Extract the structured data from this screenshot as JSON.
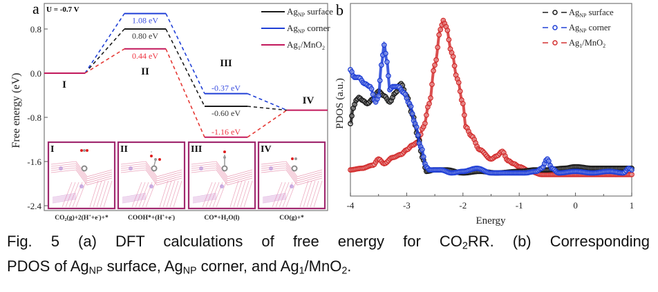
{
  "caption": {
    "line1_a": "Fig. 5 (a) DFT calculations of free energy for CO",
    "line1_sub": "2",
    "line1_b": "RR. (b) Corresponding",
    "line2_a": "PDOS of Ag",
    "line2_sub1": "NP",
    "line2_b": " surface, Ag",
    "line2_sub2": "NP",
    "line2_c": " corner, and Ag",
    "line2_sub3": "1",
    "line2_d": "/MnO",
    "line2_sub4": "2",
    "line2_e": "."
  },
  "chart_data": [
    {
      "panel": "a",
      "type": "line",
      "title": "",
      "annotation": "U = -0.7 V",
      "xlabel": "",
      "ylabel": "Free energy (eV)",
      "ylim": [
        -2.45,
        1.25
      ],
      "yticks": [
        0.8,
        0.0,
        -0.8,
        -1.6,
        -2.4
      ],
      "ytick_labels": [
        "0.8",
        "0.0",
        "-0.8",
        "-1.6",
        "-2.4"
      ],
      "grid": false,
      "legend": "top-right",
      "states": [
        "I",
        "II",
        "III",
        "IV"
      ],
      "state_xlabels": [
        "CO2(g)+2(H+ +e-)+*",
        "COOH*+(H+ +e-)",
        "CO*+H2O(l)",
        "CO(g)+*"
      ],
      "series": [
        {
          "name": "AgNP surface",
          "color": "#1a1a1a",
          "values": [
            0.0,
            0.8,
            -0.6,
            -0.67
          ],
          "labels": [
            "",
            "0.80 eV",
            "-0.60 eV",
            ""
          ]
        },
        {
          "name": "AgNP corner",
          "color": "#1f3fd6",
          "values": [
            0.0,
            1.08,
            -0.37,
            -0.67
          ],
          "labels": [
            "",
            "1.08 eV",
            "-0.37 eV",
            ""
          ]
        },
        {
          "name": "Ag1/MnO2",
          "color": "#c2185b",
          "connector_color": "#e53935",
          "values": [
            0.0,
            0.44,
            -1.16,
            -0.67
          ],
          "labels": [
            "",
            "0.44 eV",
            "-1.16 eV",
            ""
          ]
        }
      ],
      "label_colors": {
        "AgNP surface": "#333333",
        "AgNP corner": "#3b4fe0",
        "Ag1/MnO2": "#ee3340"
      },
      "insets": [
        {
          "label": "I",
          "adsorbate": "CO2"
        },
        {
          "label": "II",
          "adsorbate": "COOH"
        },
        {
          "label": "III",
          "adsorbate": "CO"
        },
        {
          "label": "IV",
          "adsorbate": "CO"
        }
      ]
    },
    {
      "panel": "b",
      "type": "scatter",
      "title": "",
      "xlabel": "Energy",
      "ylabel": "PDOS (a.u.)",
      "xlim": [
        -4,
        1
      ],
      "ylim": [
        -0.15,
        1.1
      ],
      "xticks": [
        -4,
        -3,
        -2,
        -1,
        0,
        1
      ],
      "xtick_labels": [
        "-4",
        "-3",
        "-2",
        "-1",
        "0",
        "1"
      ],
      "grid": false,
      "legend": "top-right",
      "series": [
        {
          "name": "AgNP surface",
          "color": "#1a1a1a",
          "x": [
            -4.0,
            -3.95,
            -3.9,
            -3.85,
            -3.78,
            -3.7,
            -3.6,
            -3.5,
            -3.4,
            -3.3,
            -3.2,
            -3.1,
            -3.0,
            -2.9,
            -2.8,
            -2.72,
            -2.65,
            -2.5,
            -2.3,
            -2.0,
            -1.7,
            -1.4,
            -1.0,
            -0.7,
            -0.5,
            -0.2,
            0.0,
            0.3,
            0.6,
            0.9,
            1.0
          ],
          "y": [
            0.32,
            0.42,
            0.47,
            0.49,
            0.47,
            0.45,
            0.48,
            0.53,
            0.5,
            0.46,
            0.52,
            0.58,
            0.5,
            0.38,
            0.24,
            0.1,
            0.01,
            0.02,
            0.02,
            0.0,
            0.01,
            0.0,
            0.01,
            0.02,
            0.02,
            0.03,
            0.04,
            0.03,
            0.03,
            0.03,
            0.03
          ]
        },
        {
          "name": "AgNP corner",
          "color": "#1f3fd6",
          "x": [
            -4.0,
            -3.93,
            -3.85,
            -3.75,
            -3.65,
            -3.55,
            -3.5,
            -3.45,
            -3.4,
            -3.35,
            -3.3,
            -3.25,
            -3.15,
            -3.05,
            -2.95,
            -2.85,
            -2.75,
            -2.65,
            -2.6,
            -2.4,
            -2.2,
            -2.0,
            -1.75,
            -1.5,
            -1.2,
            -0.9,
            -0.7,
            -0.6,
            -0.5,
            -0.42,
            -0.3,
            0.0,
            0.3,
            0.6,
            0.85,
            0.95,
            1.0
          ],
          "y": [
            0.67,
            0.62,
            0.62,
            0.58,
            0.56,
            0.46,
            0.5,
            0.7,
            0.83,
            0.72,
            0.54,
            0.56,
            0.56,
            0.52,
            0.45,
            0.32,
            0.17,
            0.04,
            0.02,
            0.02,
            0.0,
            0.01,
            0.03,
            0.0,
            0.0,
            0.0,
            0.01,
            0.03,
            0.09,
            0.03,
            0.0,
            0.01,
            0.0,
            0.01,
            0.0,
            0.03,
            0.02
          ]
        },
        {
          "name": "Ag1/MnO2",
          "color": "#d32f2f",
          "x": [
            -4.0,
            -3.8,
            -3.6,
            -3.5,
            -3.4,
            -3.25,
            -3.1,
            -3.0,
            -2.9,
            -2.8,
            -2.7,
            -2.6,
            -2.5,
            -2.4,
            -2.35,
            -2.3,
            -2.2,
            -2.1,
            -2.0,
            -1.95,
            -1.85,
            -1.7,
            -1.5,
            -1.4,
            -1.3,
            -1.2,
            -1.1,
            -1.0,
            -0.8,
            -0.6,
            -0.3,
            0.0,
            0.5,
            1.0
          ],
          "y": [
            0.02,
            0.03,
            0.05,
            0.09,
            0.06,
            0.1,
            0.12,
            0.15,
            0.18,
            0.2,
            0.3,
            0.45,
            0.7,
            0.93,
            0.99,
            0.95,
            0.78,
            0.61,
            0.45,
            0.3,
            0.24,
            0.15,
            0.09,
            0.11,
            0.14,
            0.08,
            0.06,
            0.04,
            0.01,
            -0.01,
            -0.01,
            -0.01,
            -0.01,
            -0.01
          ]
        }
      ]
    }
  ],
  "panel_a": {
    "panel_label": "a",
    "potential": "U = -0.7 V",
    "ylabel": "Free energy (eV)",
    "legend": [
      {
        "main": "Ag",
        "sub": "NP",
        "rest": " surface"
      },
      {
        "main": "Ag",
        "sub": "NP",
        "rest": " corner"
      },
      {
        "main": "Ag",
        "sub": "1",
        "rest": "/MnO",
        "sub2": "2"
      }
    ],
    "xlabels": [
      {
        "a": "CO",
        "s": "2",
        "b": "(g)+2(H",
        "sup": "+",
        "c": "+e",
        "sup2": "-",
        "d": ")+*"
      },
      {
        "a": "COOH*+(H",
        "sup": "+",
        "b": "+e",
        "sup2": "-",
        "c": ")"
      },
      {
        "a": "CO*+H",
        "s": "2",
        "b": "O(l)"
      },
      {
        "a": "CO(g)+*"
      }
    ]
  },
  "panel_b": {
    "panel_label": "b",
    "xlabel": "Energy",
    "ylabel": "PDOS (a.u.)",
    "legend": [
      {
        "main": "Ag",
        "sub": "NP",
        "rest": " surface"
      },
      {
        "main": "Ag",
        "sub": "NP",
        "rest": " corner"
      },
      {
        "main": "Ag",
        "sub": "1",
        "rest": "/MnO",
        "sub2": "2"
      }
    ]
  }
}
